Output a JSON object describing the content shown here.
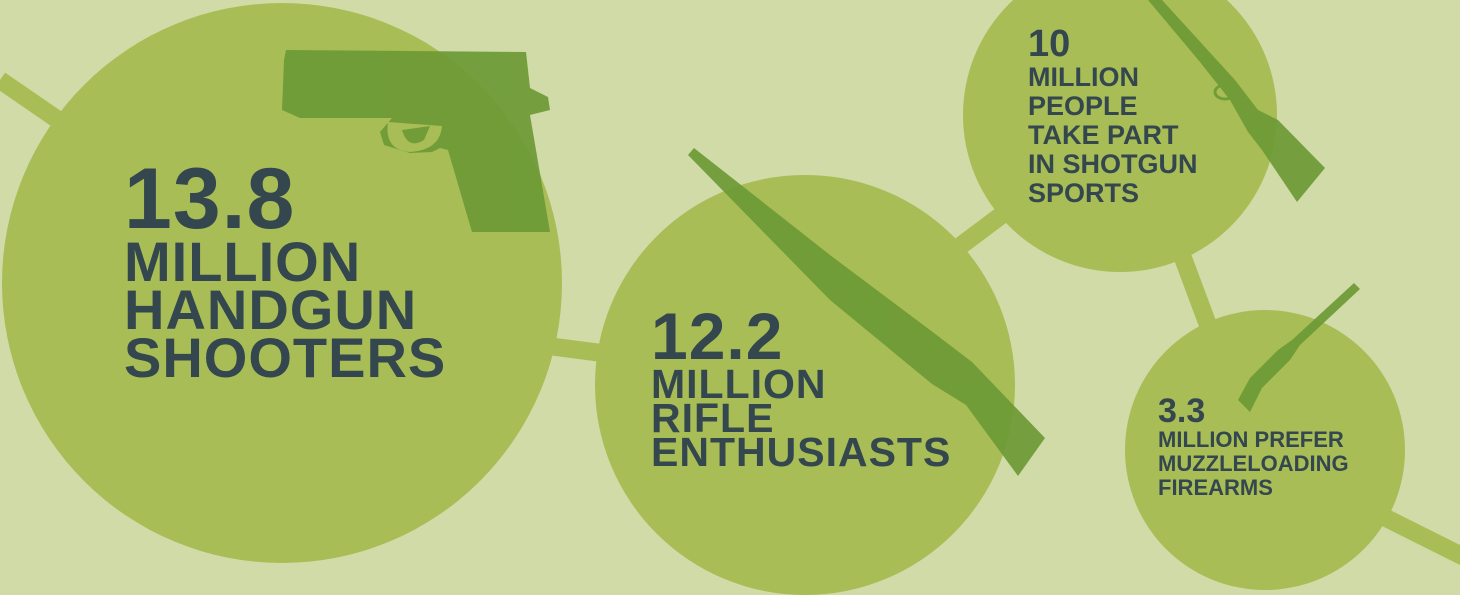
{
  "colors": {
    "background": "#d0dba8",
    "circle": "#a8bd56",
    "connector": "#a8bd56",
    "gun": "#6d9a36",
    "text": "#34474e"
  },
  "stats": {
    "handgun": {
      "number": "13.8",
      "lines": [
        "MILLION",
        "HANDGUN",
        "SHOOTERS"
      ],
      "icon": "handgun-icon"
    },
    "rifle": {
      "number": "12.2",
      "lines": [
        "MILLION",
        "RIFLE",
        "ENTHUSIASTS"
      ],
      "icon": "rifle-icon"
    },
    "shotgun": {
      "number": "10",
      "lines": [
        "MILLION",
        "PEOPLE",
        "TAKE PART",
        "IN SHOTGUN",
        "SPORTS"
      ],
      "icon": "shotgun-icon"
    },
    "muzzleloader": {
      "number": "3.3",
      "lines": [
        "MILLION PREFER",
        "MUZZLELOADING",
        "FIREARMS"
      ],
      "icon": "muzzleloader-icon"
    }
  }
}
